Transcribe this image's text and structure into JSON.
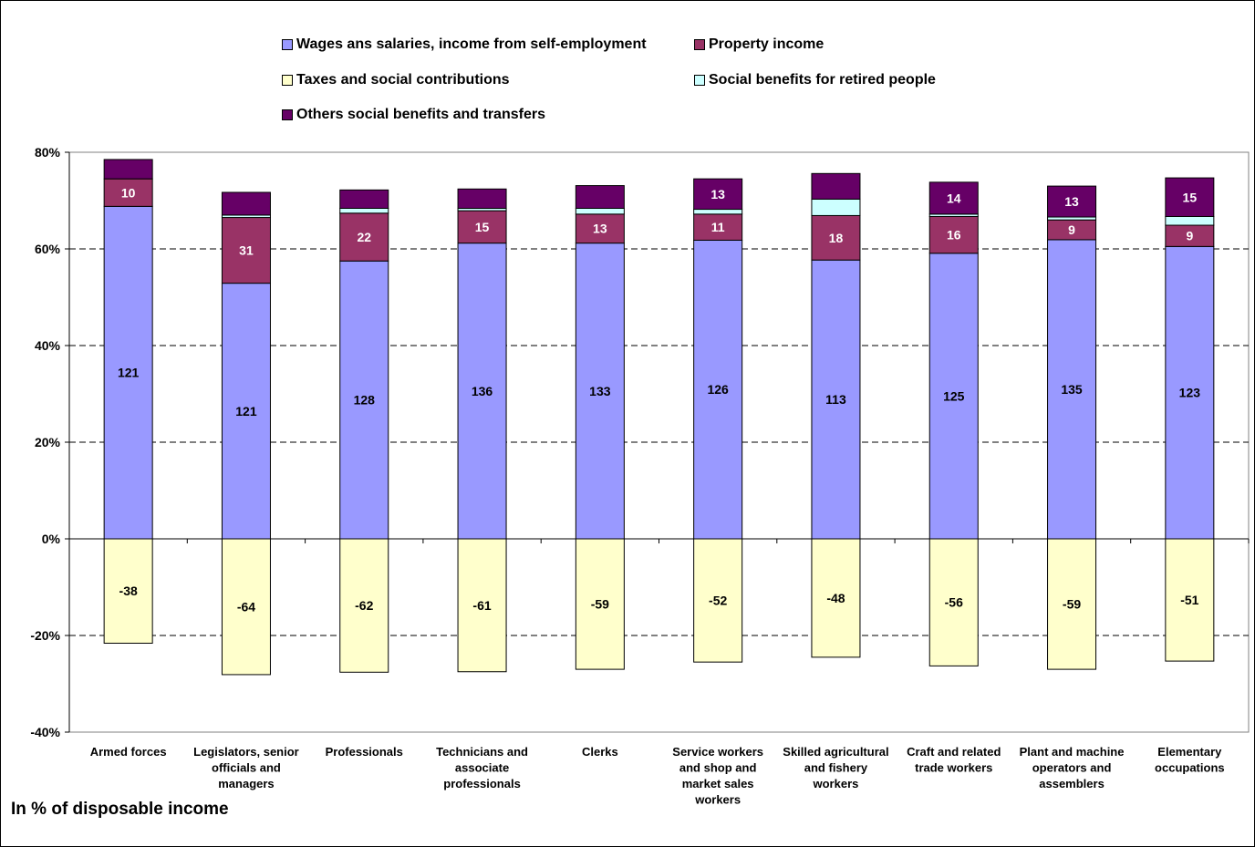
{
  "footnote": "In % of disposable income",
  "legend": [
    {
      "label": "Wages ans salaries, income from self-employment",
      "color": "#9999FF"
    },
    {
      "label": "Property income",
      "color": "#993366"
    },
    {
      "label": "Taxes and social contributions",
      "color": "#FFFFCC"
    },
    {
      "label": "Social benefits for retired people",
      "color": "#CCFFFF"
    },
    {
      "label": "Others social benefits and transfers",
      "color": "#660066"
    }
  ],
  "chart_data": {
    "type": "bar",
    "stacked": true,
    "legend_position": "top",
    "grid": "dashed horizontal",
    "ylim": [
      -0.4,
      0.8
    ],
    "yticks": [
      "80%",
      "60%",
      "40%",
      "20%",
      "0%",
      "-20%",
      "-40%"
    ],
    "ytick_values": [
      0.8,
      0.6,
      0.4,
      0.2,
      0.0,
      -0.2,
      -0.4
    ],
    "categories": [
      [
        "Armed forces"
      ],
      [
        "Legislators, senior",
        "officials and",
        "managers"
      ],
      [
        "Professionals"
      ],
      [
        "Technicians and",
        "associate",
        "professionals"
      ],
      [
        "Clerks"
      ],
      [
        "Service workers",
        "and shop and",
        "market sales",
        "workers"
      ],
      [
        "Skilled agricultural",
        "and fishery",
        "workers"
      ],
      [
        "Craft and related",
        "trade workers"
      ],
      [
        "Plant and machine",
        "operators and",
        "assemblers"
      ],
      [
        "Elementary",
        "occupations"
      ]
    ],
    "series": [
      {
        "name": "Wages ans salaries, income from self-employment",
        "color": "#9999FF",
        "values": [
          0.688,
          0.529,
          0.575,
          0.612,
          0.612,
          0.618,
          0.577,
          0.591,
          0.619,
          0.605
        ],
        "labels": [
          "121",
          "121",
          "128",
          "136",
          "133",
          "126",
          "113",
          "125",
          "135",
          "123"
        ]
      },
      {
        "name": "Property income",
        "color": "#993366",
        "values": [
          0.057,
          0.136,
          0.099,
          0.067,
          0.06,
          0.054,
          0.092,
          0.076,
          0.041,
          0.044
        ],
        "labels": [
          "10",
          "31",
          "22",
          "15",
          "13",
          "11",
          "18",
          "16",
          "9",
          "9"
        ]
      },
      {
        "name": "Social benefits for retired people",
        "color": "#CCFFFF",
        "values": [
          0.0,
          0.005,
          0.01,
          0.005,
          0.012,
          0.01,
          0.034,
          0.005,
          0.006,
          0.018
        ],
        "labels": [
          "",
          "",
          "",
          "",
          "",
          "",
          "",
          "",
          "",
          ""
        ]
      },
      {
        "name": "Others social benefits and transfers",
        "color": "#660066",
        "values": [
          0.04,
          0.047,
          0.038,
          0.04,
          0.047,
          0.063,
          0.053,
          0.066,
          0.064,
          0.08
        ],
        "labels": [
          "",
          "",
          "",
          "",
          "",
          "13",
          "",
          "14",
          "13",
          "15"
        ]
      },
      {
        "name": "Taxes and social contributions",
        "color": "#FFFFCC",
        "values": [
          -0.216,
          -0.281,
          -0.276,
          -0.275,
          -0.27,
          -0.255,
          -0.245,
          -0.263,
          -0.27,
          -0.253
        ],
        "labels": [
          "-38",
          "-64",
          "-62",
          "-61",
          "-59",
          "-52",
          "-48",
          "-56",
          "-59",
          "-51"
        ]
      }
    ]
  }
}
